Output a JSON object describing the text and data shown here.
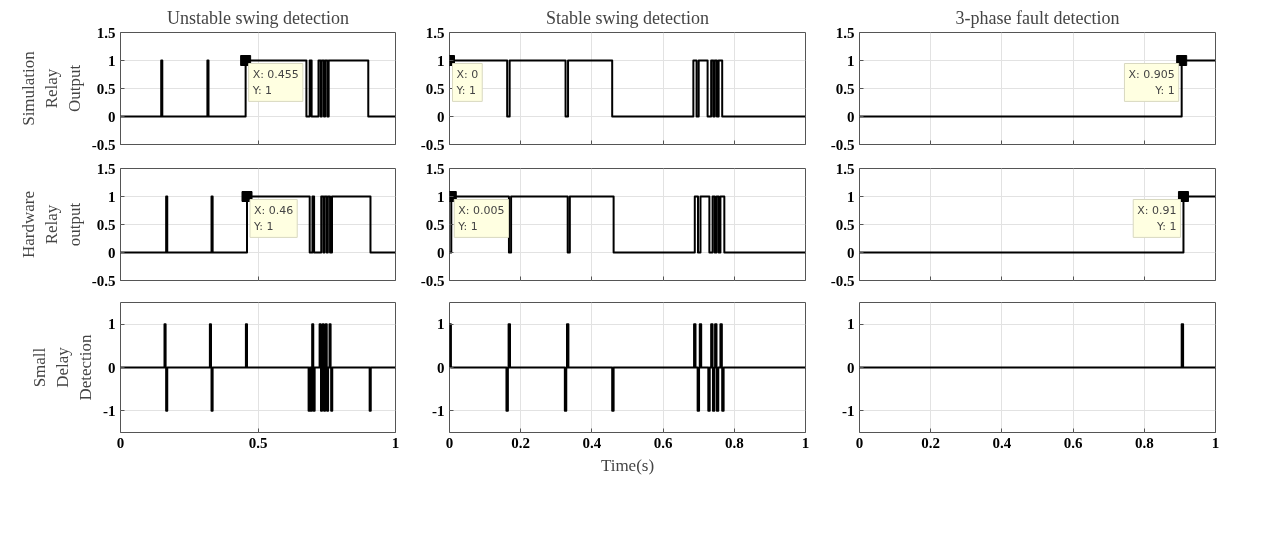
{
  "chart_data": [
    {
      "type": "line",
      "title": "Unstable swing detection",
      "ylabel": "Simulation Relay Output",
      "tick_labels": "y",
      "grid": true,
      "xlim": [
        0,
        1
      ],
      "ylim": [
        -0.5,
        1.5
      ],
      "xticks": [
        0,
        0.5,
        1
      ],
      "yticks": [
        -0.5,
        0,
        0.5,
        1,
        1.5
      ],
      "x": [
        0,
        0.148,
        0.148,
        0.152,
        0.152,
        0.316,
        0.316,
        0.32,
        0.32,
        0.455,
        0.455,
        0.676,
        0.676,
        0.688,
        0.688,
        0.695,
        0.695,
        0.72,
        0.72,
        0.728,
        0.728,
        0.732,
        0.732,
        0.74,
        0.74,
        0.744,
        0.744,
        0.752,
        0.752,
        0.757,
        0.757,
        0.901,
        0.901,
        1
      ],
      "values": [
        0,
        0,
        1,
        1,
        0,
        0,
        1,
        1,
        0,
        0,
        1,
        1,
        0,
        0,
        1,
        1,
        0,
        0,
        1,
        1,
        0,
        0,
        1,
        1,
        0,
        0,
        1,
        1,
        0,
        0,
        1,
        1,
        0,
        0
      ],
      "annotations": [
        {
          "text": "X: 0.455\nY: 1",
          "x": 0.455,
          "y": 1
        }
      ]
    },
    {
      "type": "line",
      "title": "Stable swing detection",
      "tick_labels": "y",
      "grid": true,
      "xlim": [
        0,
        1
      ],
      "ylim": [
        -0.5,
        1.5
      ],
      "xticks": [
        0,
        0.2,
        0.4,
        0.6,
        0.8,
        1
      ],
      "yticks": [
        -0.5,
        0,
        0.5,
        1,
        1.5
      ],
      "x": [
        0,
        0.162,
        0.162,
        0.169,
        0.169,
        0.326,
        0.326,
        0.333,
        0.333,
        0.457,
        0.457,
        0.685,
        0.685,
        0.694,
        0.694,
        0.7,
        0.7,
        0.725,
        0.725,
        0.735,
        0.735,
        0.741,
        0.741,
        0.745,
        0.745,
        0.751,
        0.751,
        0.756,
        0.756,
        0.766,
        0.766,
        1
      ],
      "values": [
        1,
        1,
        0,
        0,
        1,
        1,
        0,
        0,
        1,
        1,
        0,
        0,
        1,
        1,
        0,
        0,
        1,
        1,
        0,
        0,
        1,
        1,
        0,
        0,
        1,
        1,
        0,
        0,
        1,
        1,
        0,
        0
      ],
      "annotations": [
        {
          "text": "X: 0\nY: 1",
          "x": 0,
          "y": 1
        }
      ]
    },
    {
      "type": "line",
      "title": "3-phase fault detection",
      "tick_labels": "y",
      "grid": true,
      "xlim": [
        0,
        1
      ],
      "ylim": [
        -0.5,
        1.5
      ],
      "xticks": [
        0,
        0.2,
        0.4,
        0.6,
        0.8,
        1
      ],
      "yticks": [
        -0.5,
        0,
        0.5,
        1,
        1.5
      ],
      "x": [
        0,
        0.905,
        0.905,
        1
      ],
      "values": [
        0,
        0,
        1,
        1
      ],
      "annotations": [
        {
          "text": "X: 0.905\nY: 1",
          "x": 0.905,
          "y": 1
        }
      ]
    },
    {
      "type": "line",
      "ylabel": "Hardware Relay output",
      "tick_labels": "y",
      "grid": true,
      "xlim": [
        0,
        1
      ],
      "ylim": [
        -0.5,
        1.5
      ],
      "xticks": [
        0,
        0.5,
        1
      ],
      "yticks": [
        -0.5,
        0,
        0.5,
        1,
        1.5
      ],
      "x": [
        0,
        0.166,
        0.166,
        0.17,
        0.17,
        0.331,
        0.331,
        0.335,
        0.335,
        0.46,
        0.46,
        0.688,
        0.688,
        0.698,
        0.698,
        0.704,
        0.704,
        0.73,
        0.73,
        0.738,
        0.738,
        0.742,
        0.742,
        0.75,
        0.75,
        0.754,
        0.754,
        0.762,
        0.762,
        0.769,
        0.769,
        0.909,
        0.909,
        1
      ],
      "values": [
        0,
        0,
        1,
        1,
        0,
        0,
        1,
        1,
        0,
        0,
        1,
        1,
        0,
        0,
        1,
        1,
        0,
        0,
        1,
        1,
        0,
        0,
        1,
        1,
        0,
        0,
        1,
        1,
        0,
        0,
        1,
        1,
        0,
        0
      ],
      "annotations": [
        {
          "text": "X: 0.46\nY: 1",
          "x": 0.46,
          "y": 1
        }
      ]
    },
    {
      "type": "line",
      "tick_labels": "y",
      "grid": true,
      "xlim": [
        0,
        1
      ],
      "ylim": [
        -0.5,
        1.5
      ],
      "xticks": [
        0,
        0.2,
        0.4,
        0.6,
        0.8,
        1
      ],
      "yticks": [
        -0.5,
        0,
        0.5,
        1,
        1.5
      ],
      "x": [
        0,
        0.005,
        0.005,
        0.167,
        0.167,
        0.173,
        0.173,
        0.332,
        0.332,
        0.338,
        0.338,
        0.461,
        0.461,
        0.689,
        0.689,
        0.698,
        0.698,
        0.705,
        0.705,
        0.73,
        0.73,
        0.739,
        0.739,
        0.745,
        0.745,
        0.75,
        0.75,
        0.756,
        0.756,
        0.761,
        0.761,
        0.772,
        0.772,
        1
      ],
      "values": [
        0,
        0,
        1,
        1,
        0,
        0,
        1,
        1,
        0,
        0,
        1,
        1,
        0,
        0,
        1,
        1,
        0,
        0,
        1,
        1,
        0,
        0,
        1,
        1,
        0,
        0,
        1,
        1,
        0,
        0,
        1,
        1,
        0,
        0
      ],
      "annotations": [
        {
          "text": "X: 0.005\nY: 1",
          "x": 0.005,
          "y": 1
        }
      ]
    },
    {
      "type": "line",
      "tick_labels": "y",
      "grid": true,
      "xlim": [
        0,
        1
      ],
      "ylim": [
        -0.5,
        1.5
      ],
      "xticks": [
        0,
        0.2,
        0.4,
        0.6,
        0.8,
        1
      ],
      "yticks": [
        -0.5,
        0,
        0.5,
        1,
        1.5
      ],
      "x": [
        0,
        0.91,
        0.91,
        1
      ],
      "values": [
        0,
        0,
        1,
        1
      ],
      "annotations": [
        {
          "text": "X: 0.91\nY: 1",
          "x": 0.91,
          "y": 1
        }
      ]
    },
    {
      "type": "line",
      "ylabel": "Small Delay Detection",
      "grid": true,
      "xlim": [
        0,
        1
      ],
      "ylim": [
        -1.5,
        1.5
      ],
      "xticks": [
        0,
        0.5,
        1
      ],
      "yticks": [
        -1,
        0,
        1
      ],
      "x": [
        0,
        0.16,
        0.16,
        0.164,
        0.164,
        0.166,
        0.166,
        0.17,
        0.17,
        0.325,
        0.325,
        0.329,
        0.329,
        0.331,
        0.331,
        0.335,
        0.335,
        0.456,
        0.456,
        0.46,
        0.46,
        0.684,
        0.684,
        0.688,
        0.688,
        0.692,
        0.692,
        0.696,
        0.696,
        0.697,
        0.697,
        0.701,
        0.701,
        0.702,
        0.702,
        0.706,
        0.706,
        0.724,
        0.724,
        0.728,
        0.728,
        0.729,
        0.729,
        0.733,
        0.733,
        0.735,
        0.735,
        0.739,
        0.739,
        0.74,
        0.74,
        0.744,
        0.744,
        0.746,
        0.746,
        0.75,
        0.75,
        0.751,
        0.751,
        0.755,
        0.755,
        0.76,
        0.76,
        0.764,
        0.764,
        0.766,
        0.766,
        0.77,
        0.77,
        0.906,
        0.906,
        0.91,
        0.91,
        1
      ],
      "values": [
        0,
        0,
        1,
        1,
        0,
        0,
        -1,
        -1,
        0,
        0,
        1,
        1,
        0,
        0,
        -1,
        -1,
        0,
        0,
        1,
        1,
        0,
        0,
        -1,
        -1,
        0,
        0,
        -1,
        -1,
        0,
        0,
        1,
        1,
        0,
        0,
        -1,
        -1,
        0,
        0,
        1,
        1,
        0,
        0,
        -1,
        -1,
        0,
        0,
        1,
        1,
        0,
        0,
        -1,
        -1,
        0,
        0,
        1,
        1,
        0,
        0,
        -1,
        -1,
        0,
        0,
        1,
        1,
        0,
        0,
        -1,
        -1,
        0,
        0,
        -1,
        -1,
        0,
        0
      ]
    },
    {
      "type": "line",
      "xlabel": "Time(s)",
      "grid": true,
      "xlim": [
        0,
        1
      ],
      "ylim": [
        -1.5,
        1.5
      ],
      "xticks": [
        0,
        0.2,
        0.4,
        0.6,
        0.8,
        1
      ],
      "yticks": [
        -1,
        0,
        1
      ],
      "x": [
        0,
        0,
        0.004,
        0.004,
        0.16,
        0.16,
        0.164,
        0.164,
        0.166,
        0.166,
        0.17,
        0.17,
        0.324,
        0.324,
        0.328,
        0.328,
        0.33,
        0.33,
        0.334,
        0.334,
        0.457,
        0.457,
        0.461,
        0.461,
        0.687,
        0.687,
        0.691,
        0.691,
        0.697,
        0.697,
        0.701,
        0.701,
        0.703,
        0.703,
        0.707,
        0.707,
        0.727,
        0.727,
        0.731,
        0.731,
        0.735,
        0.735,
        0.739,
        0.739,
        0.74,
        0.74,
        0.744,
        0.744,
        0.746,
        0.746,
        0.75,
        0.75,
        0.751,
        0.751,
        0.755,
        0.755,
        0.761,
        0.761,
        0.765,
        0.765,
        0.766,
        0.766,
        0.77,
        0.77,
        1
      ],
      "values": [
        0,
        1,
        1,
        0,
        0,
        -1,
        -1,
        0,
        0,
        1,
        1,
        0,
        0,
        -1,
        -1,
        0,
        0,
        1,
        1,
        0,
        0,
        -1,
        -1,
        0,
        0,
        1,
        1,
        0,
        0,
        -1,
        -1,
        0,
        0,
        1,
        1,
        0,
        0,
        -1,
        -1,
        0,
        0,
        1,
        1,
        0,
        0,
        -1,
        -1,
        0,
        0,
        1,
        1,
        0,
        0,
        -1,
        -1,
        0,
        0,
        1,
        1,
        0,
        0,
        -1,
        -1,
        0,
        0
      ]
    },
    {
      "type": "line",
      "grid": true,
      "xlim": [
        0,
        1
      ],
      "ylim": [
        -1.5,
        1.5
      ],
      "xticks": [
        0,
        0.2,
        0.4,
        0.6,
        0.8,
        1
      ],
      "yticks": [
        -1,
        0,
        1
      ],
      "x": [
        0,
        0.905,
        0.905,
        0.909,
        0.909,
        1
      ],
      "values": [
        0,
        0,
        1,
        1,
        0,
        0
      ]
    }
  ]
}
